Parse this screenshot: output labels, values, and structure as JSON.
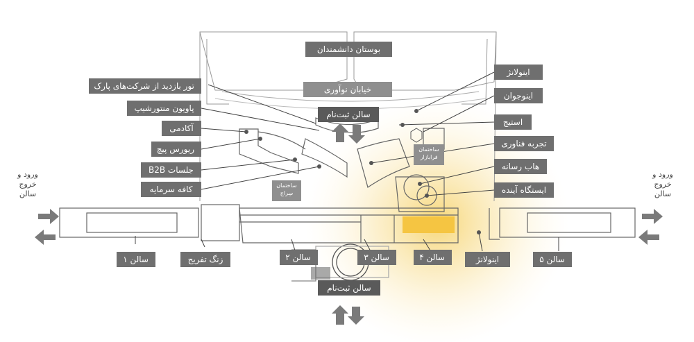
{
  "map": {
    "top_labels": {
      "science_park": "بوستان دانشمندان",
      "innovation_street": "خیابان نوآوری"
    },
    "left_labels": {
      "company_tour": "تور بازدید از شرکت‌های پارک",
      "mentorship_pavilion": "پاویون منتورشیپ",
      "academy": "آکادمی",
      "reverse_pitch": "ریورس پیچ",
      "b2b_sessions": "جلسات B2B",
      "investment_cafe": "کافه سرمایه"
    },
    "right_labels": {
      "innolands_top": "اینولانژ",
      "inno_youth": "اینوجوان",
      "stage": "استیج",
      "tech_experience": "تجربه فناوری",
      "media_hub": "هاب رسانه",
      "future_station": "ایستگاه آینده"
    },
    "halls": {
      "registration_top": "سالن ثبت‌نام",
      "registration_bottom": "سالن ثبت‌نام",
      "hall1": "سالن ۱",
      "hall2": "سالن ۲",
      "hall3": "سالن ۳",
      "hall4": "سالن ۴",
      "hall5": "سالن ۵",
      "innolands_bottom": "اینولانژ",
      "break_time": "زنگ تفریح"
    },
    "entry_left": "ورود و\nخروج\nسالن",
    "entry_right": "ورود و\nخروج\nسالن",
    "building_serah": "ساختمان\nسِراج",
    "building_farabazar": "ساختمان\nفرابازار"
  },
  "colors": {
    "label_bg": "#6f6f6f",
    "highlight": "#f5c542",
    "glow": "#fbe7a8",
    "lines": "#555555"
  }
}
